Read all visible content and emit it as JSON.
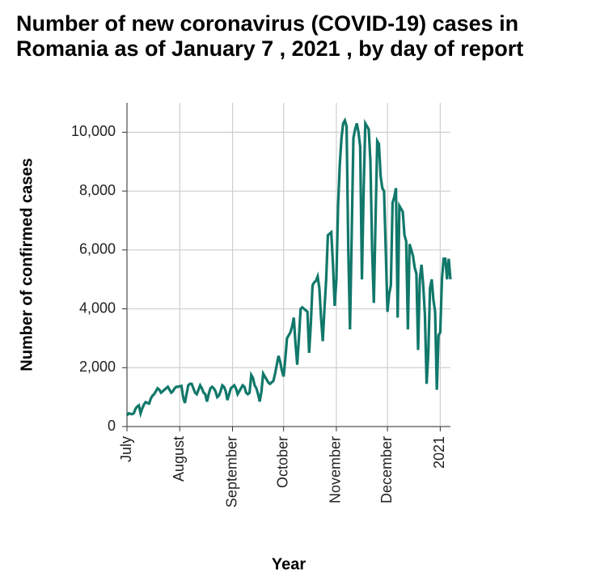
{
  "chart_data": {
    "type": "line",
    "title": "Number of new coronavirus (COVID-19) cases in Romania as of January 7 , 2021 , by day of report",
    "x_label": "Year",
    "y_label": "Number of confirmed cases",
    "color": "#11786a",
    "grid": true,
    "ylim": [
      0,
      11000
    ],
    "yticks": [
      0,
      {
        "value": 2000,
        "label": "2,000"
      },
      {
        "value": 4000,
        "label": "4,000"
      },
      {
        "value": 6000,
        "label": "6,000"
      },
      {
        "value": 8000,
        "label": "8,000"
      },
      {
        "value": 10000,
        "label": "10,000"
      }
    ],
    "categories": [
      "July",
      null,
      null,
      null,
      null,
      null,
      null,
      null,
      null,
      null,
      null,
      null,
      null,
      null,
      null,
      null,
      null,
      null,
      null,
      null,
      null,
      null,
      null,
      null,
      null,
      null,
      null,
      null,
      null,
      null,
      null,
      "August",
      null,
      null,
      null,
      null,
      null,
      null,
      null,
      null,
      null,
      null,
      null,
      null,
      null,
      null,
      null,
      null,
      null,
      null,
      null,
      null,
      null,
      null,
      null,
      null,
      null,
      null,
      null,
      null,
      null,
      null,
      "September",
      null,
      null,
      null,
      null,
      null,
      null,
      null,
      null,
      null,
      null,
      null,
      null,
      null,
      null,
      null,
      null,
      null,
      null,
      null,
      null,
      null,
      null,
      null,
      null,
      null,
      null,
      null,
      null,
      null,
      "October",
      null,
      null,
      null,
      null,
      null,
      null,
      null,
      null,
      null,
      null,
      null,
      null,
      null,
      null,
      null,
      null,
      null,
      null,
      null,
      null,
      null,
      null,
      null,
      null,
      null,
      null,
      null,
      null,
      null,
      null,
      "November",
      null,
      null,
      null,
      null,
      null,
      null,
      null,
      null,
      null,
      null,
      null,
      null,
      null,
      null,
      null,
      null,
      null,
      null,
      null,
      null,
      null,
      null,
      null,
      null,
      null,
      null,
      null,
      null,
      null,
      "December",
      null,
      null,
      null,
      null,
      null,
      null,
      null,
      null,
      null,
      null,
      null,
      null,
      null,
      null,
      null,
      null,
      null,
      null,
      null,
      null,
      null,
      null,
      null,
      null,
      null,
      null,
      null,
      null,
      null,
      null,
      "2021",
      null,
      null,
      null,
      null,
      null,
      null
    ],
    "values": [
      380,
      450,
      430,
      420,
      450,
      600,
      680,
      720,
      450,
      620,
      750,
      830,
      800,
      780,
      950,
      1050,
      1100,
      1200,
      1300,
      1250,
      1150,
      1200,
      1250,
      1300,
      1350,
      1250,
      1150,
      1200,
      1300,
      1350,
      1350,
      1370,
      1380,
      1000,
      800,
      1100,
      1400,
      1450,
      1450,
      1300,
      1150,
      1100,
      1250,
      1400,
      1300,
      1150,
      1100,
      850,
      1100,
      1300,
      1350,
      1300,
      1200,
      1000,
      1050,
      1200,
      1400,
      1350,
      1200,
      900,
      1100,
      1300,
      1350,
      1400,
      1300,
      1100,
      1200,
      1300,
      1400,
      1350,
      1150,
      1100,
      1150,
      1750,
      1650,
      1400,
      1300,
      1100,
      850,
      1200,
      1800,
      1700,
      1600,
      1500,
      1450,
      1500,
      1550,
      1800,
      2100,
      2400,
      2200,
      1900,
      1700,
      2300,
      3000,
      3100,
      3200,
      3400,
      3700,
      2800,
      2100,
      3000,
      4000,
      4050,
      4000,
      3950,
      3900,
      2500,
      3500,
      4800,
      4900,
      4950,
      5100,
      4700,
      3700,
      2900,
      4000,
      5000,
      6500,
      6550,
      6600,
      5500,
      4100,
      5000,
      7500,
      8900,
      9800,
      10300,
      10400,
      10200,
      6000,
      3300,
      6500,
      9800,
      10100,
      10300,
      10000,
      9500,
      5000,
      8000,
      10300,
      10200,
      10100,
      9000,
      6000,
      4200,
      7000,
      9700,
      9600,
      8500,
      8100,
      8000,
      6000,
      3900,
      4500,
      4800,
      7600,
      7800,
      8100,
      3700,
      7500,
      7400,
      7300,
      6500,
      6300,
      3300,
      6200,
      6000,
      5800,
      5400,
      5200,
      2600,
      5000,
      5500,
      4800,
      3800,
      1450,
      2500,
      4700,
      5000,
      4300,
      3900,
      1250,
      3100,
      3200,
      5000,
      5700,
      5700,
      5000,
      5700,
      5000
    ]
  }
}
